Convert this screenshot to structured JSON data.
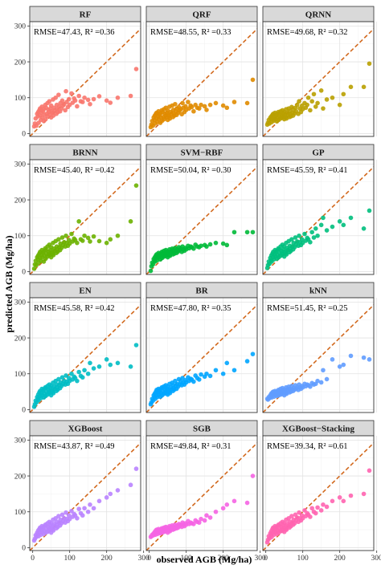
{
  "chart_data": {
    "type": "scatter",
    "xlabel": "observed AGB (Mg/ha)",
    "ylabel": "predicted AGB (Mg/ha)",
    "xlim": [
      -8,
      292
    ],
    "ylim": [
      -8,
      312
    ],
    "x_ticks": [
      0,
      100,
      200,
      300
    ],
    "y_ticks": [
      0,
      100,
      200,
      300
    ],
    "reference_line": {
      "style": "dashed",
      "slope": 1,
      "intercept": 0,
      "color": "#d2691e"
    },
    "grid": true,
    "observed": [
      4,
      6,
      8,
      10,
      12,
      14,
      15,
      16,
      18,
      20,
      20,
      22,
      24,
      25,
      26,
      28,
      30,
      30,
      32,
      34,
      35,
      36,
      38,
      40,
      40,
      42,
      44,
      45,
      46,
      48,
      50,
      50,
      52,
      54,
      55,
      56,
      58,
      60,
      62,
      64,
      65,
      66,
      68,
      70,
      72,
      74,
      75,
      78,
      80,
      82,
      85,
      88,
      90,
      92,
      95,
      98,
      100,
      105,
      108,
      112,
      115,
      120,
      125,
      130,
      135,
      140,
      150,
      155,
      165,
      180,
      200,
      210,
      230,
      265,
      280
    ],
    "panels": [
      {
        "title": "RF",
        "metric": "RMSE=47.43, R² =0.36",
        "color": "#f8766d",
        "predicted": [
          20,
          28,
          42,
          22,
          55,
          48,
          60,
          30,
          65,
          50,
          70,
          38,
          58,
          75,
          45,
          62,
          35,
          68,
          52,
          80,
          40,
          72,
          55,
          85,
          48,
          66,
          60,
          90,
          53,
          70,
          45,
          78,
          62,
          58,
          95,
          50,
          72,
          65,
          100,
          55,
          80,
          68,
          60,
          108,
          75,
          62,
          85,
          70,
          92,
          78,
          82,
          65,
          118,
          88,
          74,
          96,
          80,
          112,
          86,
          98,
          92,
          76,
          105,
          90,
          88,
          100,
          94,
          82,
          96,
          104,
          92,
          86,
          100,
          105,
          180
        ]
      },
      {
        "title": "QRF",
        "metric": "RMSE=48.55, R² =0.33",
        "color": "#e08b00",
        "predicted": [
          18,
          25,
          35,
          22,
          45,
          38,
          50,
          28,
          55,
          42,
          58,
          32,
          48,
          62,
          40,
          52,
          30,
          56,
          44,
          65,
          36,
          60,
          46,
          68,
          40,
          55,
          50,
          72,
          45,
          58,
          38,
          64,
          52,
          48,
          75,
          42,
          60,
          54,
          78,
          46,
          66,
          56,
          50,
          82,
          62,
          52,
          70,
          58,
          74,
          64,
          68,
          54,
          85,
          72,
          60,
          76,
          66,
          88,
          70,
          78,
          74,
          62,
          80,
          72,
          70,
          80,
          76,
          66,
          80,
          85,
          78,
          72,
          88,
          85,
          150
        ]
      },
      {
        "title": "QRNN",
        "metric": "RMSE=49.68, R² =0.32",
        "color": "#b9a000",
        "predicted": [
          25,
          30,
          38,
          28,
          44,
          40,
          48,
          32,
          52,
          42,
          55,
          36,
          46,
          58,
          40,
          50,
          34,
          54,
          44,
          60,
          38,
          56,
          46,
          62,
          42,
          52,
          48,
          65,
          44,
          56,
          40,
          60,
          50,
          46,
          68,
          42,
          58,
          52,
          70,
          46,
          62,
          54,
          48,
          74,
          58,
          50,
          66,
          56,
          72,
          62,
          80,
          55,
          90,
          70,
          60,
          78,
          68,
          85,
          72,
          80,
          100,
          65,
          90,
          110,
          75,
          85,
          120,
          70,
          95,
          100,
          80,
          110,
          130,
          130,
          195
        ]
      },
      {
        "title": "BRNN",
        "metric": "RMSE=45.40, R² =0.42",
        "color": "#6bb100",
        "predicted": [
          8,
          20,
          30,
          18,
          40,
          35,
          45,
          25,
          50,
          38,
          55,
          30,
          46,
          60,
          40,
          52,
          28,
          56,
          44,
          65,
          36,
          60,
          48,
          70,
          42,
          56,
          50,
          75,
          46,
          60,
          40,
          68,
          54,
          50,
          80,
          46,
          64,
          58,
          85,
          52,
          70,
          62,
          56,
          90,
          68,
          60,
          78,
          66,
          95,
          74,
          82,
          70,
          100,
          80,
          72,
          88,
          78,
          105,
          84,
          92,
          88,
          80,
          140,
          90,
          86,
          100,
          94,
          84,
          98,
          85,
          80,
          90,
          100,
          140,
          240
        ]
      },
      {
        "title": "SVM−RBF",
        "metric": "RMSE=50.04, R² =0.30",
        "color": "#00ba38",
        "predicted": [
          2,
          15,
          25,
          20,
          35,
          30,
          40,
          28,
          45,
          38,
          48,
          32,
          42,
          52,
          40,
          46,
          34,
          50,
          44,
          55,
          38,
          52,
          46,
          58,
          42,
          50,
          48,
          60,
          44,
          54,
          40,
          56,
          50,
          46,
          62,
          44,
          56,
          52,
          64,
          48,
          60,
          54,
          50,
          66,
          58,
          52,
          62,
          56,
          68,
          60,
          64,
          55,
          70,
          62,
          58,
          66,
          62,
          72,
          65,
          70,
          68,
          64,
          75,
          70,
          68,
          72,
          74,
          70,
          76,
          80,
          78,
          74,
          110,
          110,
          110
        ]
      },
      {
        "title": "GP",
        "metric": "RMSE=45.59, R² =0.41",
        "color": "#00bf7d",
        "predicted": [
          10,
          18,
          28,
          22,
          38,
          32,
          45,
          28,
          50,
          40,
          55,
          34,
          48,
          60,
          42,
          54,
          36,
          58,
          46,
          65,
          40,
          62,
          50,
          70,
          44,
          58,
          52,
          75,
          48,
          62,
          42,
          70,
          56,
          52,
          80,
          48,
          66,
          60,
          85,
          54,
          72,
          64,
          58,
          90,
          70,
          62,
          80,
          68,
          95,
          76,
          84,
          72,
          100,
          82,
          74,
          90,
          80,
          105,
          86,
          94,
          90,
          82,
          110,
          95,
          120,
          100,
          130,
          150,
          115,
          125,
          140,
          130,
          150,
          120,
          170
        ]
      },
      {
        "title": "EN",
        "metric": "RMSE=45.58, R² =0.42",
        "color": "#00bcc4",
        "predicted": [
          8,
          15,
          25,
          20,
          35,
          30,
          42,
          26,
          48,
          38,
          52,
          32,
          46,
          58,
          40,
          52,
          34,
          56,
          44,
          62,
          38,
          60,
          48,
          66,
          42,
          56,
          50,
          70,
          46,
          60,
          40,
          66,
          54,
          50,
          75,
          46,
          64,
          58,
          80,
          52,
          70,
          62,
          56,
          85,
          68,
          60,
          76,
          66,
          90,
          72,
          80,
          70,
          95,
          78,
          72,
          88,
          80,
          100,
          84,
          92,
          88,
          80,
          105,
          94,
          90,
          110,
          100,
          130,
          115,
          120,
          140,
          125,
          130,
          120,
          180
        ]
      },
      {
        "title": "BR",
        "metric": "RMSE=47.80, R² =0.35",
        "color": "#00a5ff",
        "predicted": [
          15,
          20,
          30,
          25,
          40,
          35,
          45,
          30,
          50,
          40,
          55,
          35,
          48,
          58,
          42,
          52,
          36,
          56,
          46,
          62,
          40,
          60,
          48,
          65,
          44,
          56,
          50,
          68,
          46,
          58,
          42,
          64,
          54,
          50,
          72,
          46,
          62,
          56,
          75,
          52,
          68,
          60,
          56,
          80,
          66,
          58,
          72,
          64,
          85,
          70,
          78,
          68,
          88,
          76,
          70,
          82,
          76,
          90,
          80,
          86,
          84,
          78,
          95,
          88,
          84,
          98,
          92,
          100,
          94,
          110,
          100,
          130,
          110,
          135,
          155
        ]
      },
      {
        "title": "kNN",
        "metric": "RMSE=51.45, R² =0.25",
        "color": "#619cff",
        "predicted": [
          30,
          28,
          35,
          32,
          40,
          38,
          45,
          34,
          48,
          42,
          50,
          36,
          46,
          52,
          40,
          48,
          38,
          50,
          44,
          55,
          40,
          52,
          46,
          58,
          42,
          50,
          48,
          60,
          44,
          54,
          40,
          56,
          50,
          46,
          62,
          44,
          56,
          52,
          64,
          48,
          58,
          54,
          50,
          66,
          56,
          52,
          60,
          56,
          68,
          58,
          62,
          55,
          70,
          62,
          58,
          66,
          62,
          72,
          65,
          70,
          68,
          64,
          74,
          70,
          72,
          80,
          76,
          110,
          85,
          140,
          120,
          125,
          150,
          145,
          140
        ]
      },
      {
        "title": "XGBoost",
        "metric": "RMSE=43.87, R² =0.49",
        "color": "#b983ff",
        "predicted": [
          20,
          25,
          35,
          30,
          42,
          38,
          48,
          32,
          52,
          42,
          56,
          36,
          50,
          60,
          44,
          54,
          38,
          58,
          46,
          64,
          42,
          62,
          50,
          68,
          44,
          58,
          52,
          72,
          48,
          62,
          42,
          68,
          56,
          52,
          78,
          48,
          66,
          60,
          82,
          54,
          72,
          64,
          58,
          88,
          70,
          62,
          78,
          68,
          92,
          74,
          82,
          70,
          98,
          80,
          74,
          90,
          80,
          102,
          86,
          94,
          90,
          82,
          108,
          96,
          90,
          110,
          100,
          120,
          110,
          130,
          140,
          150,
          160,
          175,
          220
        ]
      },
      {
        "title": "SGB",
        "metric": "RMSE=49.84, R² =0.31",
        "color": "#f564e3",
        "predicted": [
          30,
          32,
          36,
          34,
          40,
          38,
          44,
          36,
          48,
          42,
          50,
          38,
          46,
          52,
          42,
          48,
          40,
          50,
          44,
          54,
          42,
          52,
          46,
          56,
          44,
          50,
          48,
          58,
          46,
          54,
          42,
          56,
          50,
          48,
          60,
          46,
          56,
          52,
          62,
          50,
          58,
          54,
          52,
          64,
          58,
          54,
          62,
          56,
          66,
          60,
          64,
          58,
          70,
          64,
          60,
          68,
          64,
          74,
          66,
          70,
          68,
          66,
          76,
          72,
          70,
          80,
          76,
          90,
          84,
          100,
          110,
          120,
          130,
          125,
          200
        ]
      },
      {
        "title": "XGBoost−Stacking",
        "metric": "RMSE=39.34, R² =0.61",
        "color": "#ff64b0",
        "predicted": [
          15,
          22,
          32,
          26,
          40,
          36,
          46,
          30,
          52,
          42,
          56,
          36,
          50,
          60,
          44,
          54,
          38,
          58,
          48,
          64,
          42,
          62,
          50,
          68,
          46,
          58,
          52,
          72,
          48,
          62,
          44,
          68,
          56,
          52,
          78,
          50,
          66,
          60,
          82,
          56,
          72,
          64,
          60,
          88,
          70,
          64,
          78,
          68,
          92,
          76,
          84,
          72,
          98,
          82,
          76,
          90,
          82,
          104,
          88,
          96,
          92,
          86,
          110,
          100,
          96,
          112,
          104,
          120,
          114,
          130,
          140,
          130,
          145,
          150,
          215
        ]
      }
    ]
  }
}
